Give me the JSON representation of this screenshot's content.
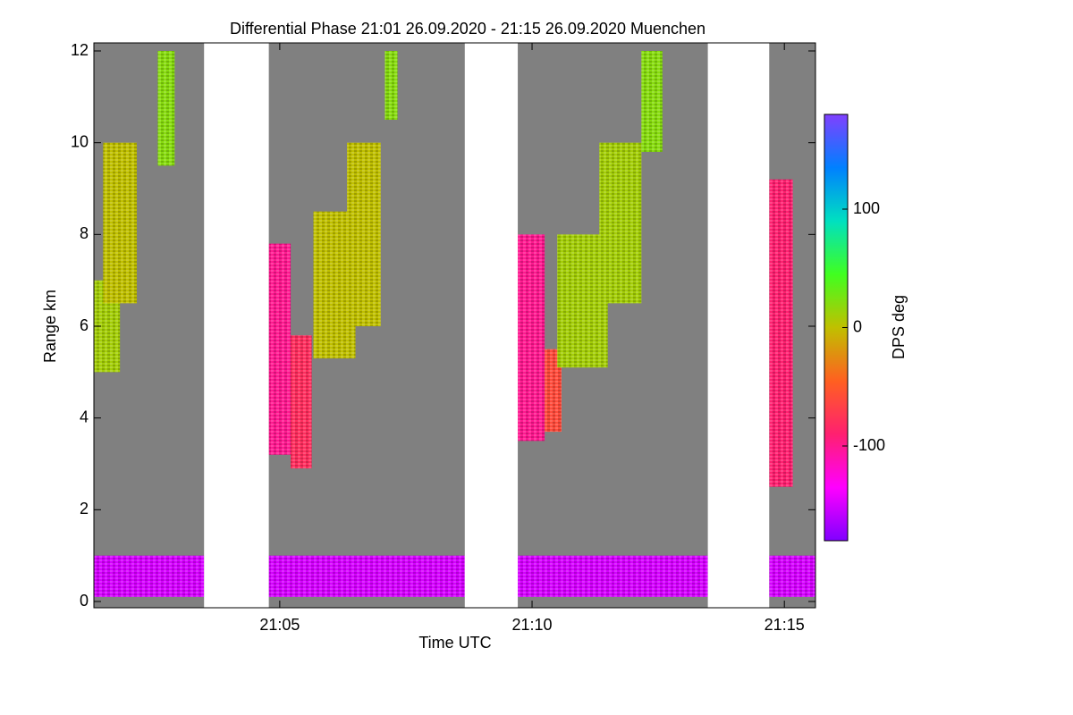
{
  "chart_data": {
    "type": "heatmap",
    "title": "Differential Phase   21:01 26.09.2020 - 21:15 26.09.2020 Muenchen",
    "x_label": "Time UTC",
    "y_label": "Range km",
    "colorbar_label": "DPS deg",
    "xlim": [
      "21:01:19",
      "21:15:37"
    ],
    "xticks": [
      "21:05",
      "21:10",
      "21:15"
    ],
    "ylim": [
      0,
      12
    ],
    "yticks": [
      0,
      2,
      4,
      6,
      8,
      10,
      12
    ],
    "clim": [
      -180,
      180
    ],
    "cticks": [
      -100,
      0,
      100
    ],
    "colormap": [
      "#8000ff",
      "#ff00ff",
      "#ff2070",
      "#ff6020",
      "#c0c000",
      "#40ff20",
      "#00e0c0",
      "#0080ff",
      "#8040ff"
    ],
    "background_color": "#808080",
    "gaps": [
      {
        "start": "21:03:30",
        "end": "21:04:47"
      },
      {
        "start": "21:08:40",
        "end": "21:09:43"
      },
      {
        "start": "21:13:29",
        "end": "21:14:42"
      }
    ],
    "echo_regions": [
      {
        "start": "21:01:19",
        "end": "21:03:30",
        "bottom": 0.1,
        "top": 1.0,
        "phase": -150
      },
      {
        "start": "21:04:47",
        "end": "21:08:40",
        "bottom": 0.1,
        "top": 1.0,
        "phase": -150
      },
      {
        "start": "21:09:43",
        "end": "21:13:29",
        "bottom": 0.1,
        "top": 1.0,
        "phase": -150
      },
      {
        "start": "21:14:42",
        "end": "21:15:37",
        "bottom": 0.1,
        "top": 1.0,
        "phase": -150
      },
      {
        "start": "21:04:47",
        "end": "21:05:13",
        "bottom": 3.2,
        "top": 7.8,
        "phase": -100
      },
      {
        "start": "21:05:13",
        "end": "21:05:38",
        "bottom": 2.9,
        "top": 5.8,
        "phase": -80
      },
      {
        "start": "21:09:43",
        "end": "21:10:15",
        "bottom": 3.5,
        "top": 8.0,
        "phase": -100
      },
      {
        "start": "21:10:15",
        "end": "21:10:35",
        "bottom": 3.7,
        "top": 5.5,
        "phase": -60
      },
      {
        "start": "21:14:42",
        "end": "21:15:10",
        "bottom": 2.5,
        "top": 9.2,
        "phase": -90
      },
      {
        "start": "21:01:19",
        "end": "21:01:50",
        "bottom": 5.0,
        "top": 7.0,
        "phase": 10
      },
      {
        "start": "21:01:30",
        "end": "21:02:10",
        "bottom": 6.5,
        "top": 10.0,
        "phase": 0
      },
      {
        "start": "21:02:35",
        "end": "21:02:55",
        "bottom": 9.5,
        "top": 12.0,
        "phase": 20
      },
      {
        "start": "21:05:40",
        "end": "21:06:30",
        "bottom": 5.3,
        "top": 8.5,
        "phase": 0
      },
      {
        "start": "21:06:20",
        "end": "21:07:00",
        "bottom": 6.0,
        "top": 10.0,
        "phase": 0
      },
      {
        "start": "21:07:05",
        "end": "21:07:20",
        "bottom": 10.5,
        "top": 12.0,
        "phase": 20
      },
      {
        "start": "21:10:30",
        "end": "21:11:30",
        "bottom": 5.1,
        "top": 8.0,
        "phase": 10
      },
      {
        "start": "21:11:20",
        "end": "21:12:10",
        "bottom": 6.5,
        "top": 10.0,
        "phase": 10
      },
      {
        "start": "21:12:10",
        "end": "21:12:35",
        "bottom": 9.8,
        "top": 12.0,
        "phase": 20
      }
    ]
  }
}
